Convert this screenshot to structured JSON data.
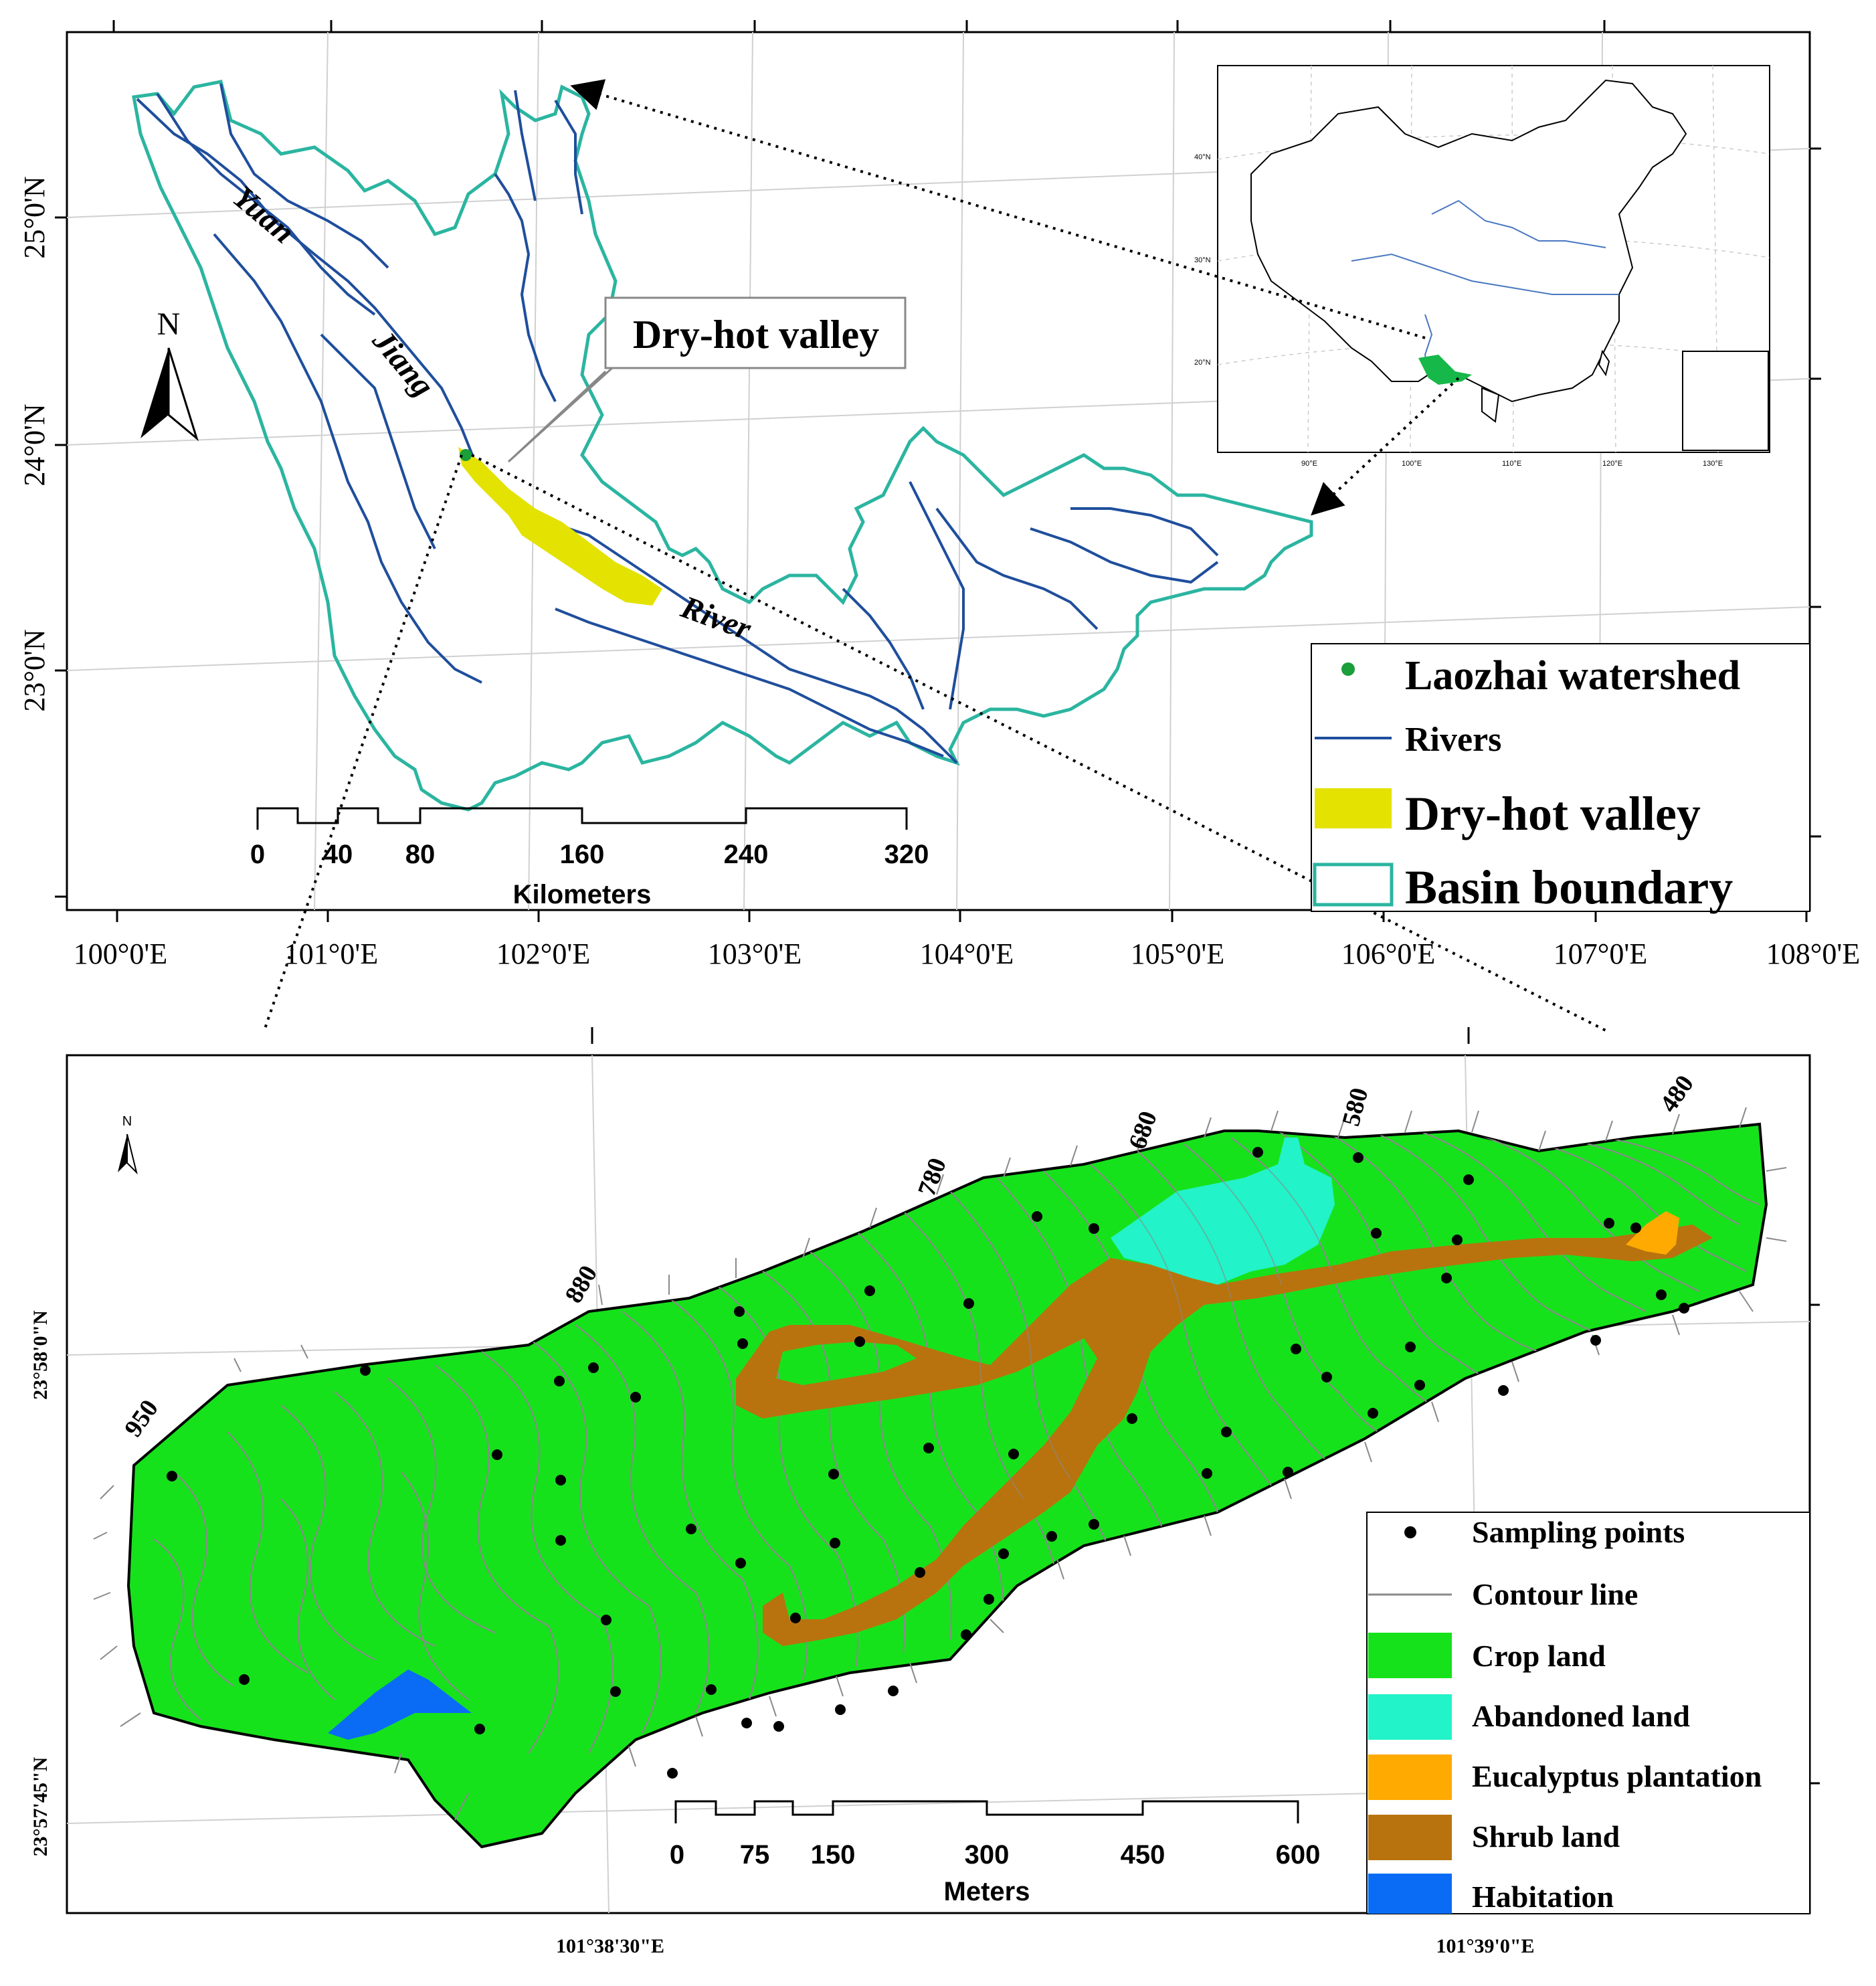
{
  "top_map": {
    "lon_labels": [
      "100°0'E",
      "101°0'E",
      "102°0'E",
      "103°0'E",
      "104°0'E",
      "105°0'E",
      "106°0'E",
      "107°0'E",
      "108°0'E"
    ],
    "lat_labels": [
      "25°0'N",
      "24°0'N",
      "23°0'N"
    ],
    "river_name_parts": [
      "Yuan",
      "Jiang",
      "River"
    ],
    "callout_label": "Dry-hot valley",
    "north_label": "N",
    "scale_ticks": [
      "0",
      "40",
      "80",
      "160",
      "240",
      "320"
    ],
    "scale_unit": "Kilometers",
    "legend": {
      "laozhai": "Laozhai watershed",
      "rivers": "Rivers",
      "dry_hot": "Dry-hot valley",
      "basin": "Basin boundary"
    },
    "inset": {
      "lat_labels": [
        "40°N",
        "30°N",
        "20°N"
      ],
      "lon_labels": [
        "90°E",
        "100°E",
        "110°E",
        "120°E",
        "130°E"
      ]
    }
  },
  "bottom_map": {
    "contour_labels": [
      "950",
      "880",
      "780",
      "680",
      "580",
      "480"
    ],
    "lat_labels": [
      "23°58'0\"N",
      "23°57'45\"N"
    ],
    "lon_labels": [
      "101°38'30\"E",
      "101°39'0\"E"
    ],
    "north_label": "N",
    "scale_ticks": [
      "0",
      "75",
      "150",
      "300",
      "450",
      "600"
    ],
    "scale_unit": "Meters",
    "legend": {
      "sampling": "Sampling points",
      "contour": "Contour line",
      "crop": "Crop land",
      "abandoned": "Abandoned land",
      "eucalyptus": "Eucalyptus plantation",
      "shrub": "Shrub land",
      "habitation": "Habitation"
    }
  },
  "colors": {
    "basin": "#2bb5a0",
    "river": "#1f4e9c",
    "dry_hot": "#e3e200",
    "crop": "#16e21b",
    "abandoned": "#22f3c8",
    "eucalyptus": "#ffaa00",
    "shrub": "#b8730f",
    "habitation": "#0a6cf5",
    "contour": "#8a8a8a",
    "laozhai": "#1a9f3a"
  }
}
